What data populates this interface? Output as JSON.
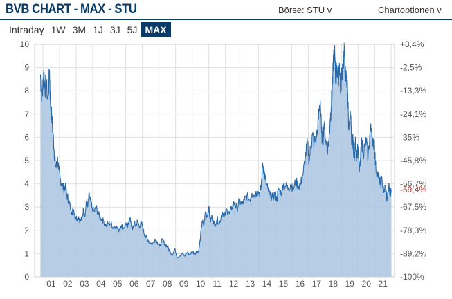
{
  "header": {
    "title": "BVB CHART - MAX - STU",
    "exchange_label": "Börse: STU v",
    "options_label": "Chartoptionen v"
  },
  "range_tabs": [
    {
      "label": "Intraday",
      "active": false
    },
    {
      "label": "1W",
      "active": false
    },
    {
      "label": "3M",
      "active": false
    },
    {
      "label": "1J",
      "active": false
    },
    {
      "label": "3J",
      "active": false
    },
    {
      "label": "5J",
      "active": false
    },
    {
      "label": "MAX",
      "active": true
    }
  ],
  "colors": {
    "brand": "#0a3a66",
    "line": "#2a6aa8",
    "area": "#a9c4e0",
    "highlight_pct": "#c0392b"
  },
  "chart_data": {
    "type": "area",
    "title": "",
    "xlabel": "",
    "ylabel": "",
    "ylim": [
      0,
      10
    ],
    "xlim": [
      2000.5,
      2022.2
    ],
    "grid": true,
    "y_ticks": [
      "0",
      "1",
      "2",
      "3",
      "4",
      "5",
      "6",
      "7",
      "8",
      "9",
      "10"
    ],
    "y2_ticks": [
      "-100%",
      "-89,2%",
      "-78,3%",
      "-67,5%",
      "-56,7%",
      "-45,8%",
      "-35%",
      "-24,1%",
      "-13,3%",
      "-2,5%",
      "+8,4%"
    ],
    "current_pct": "-59,4%",
    "current_value": 3.75,
    "x_ticks": [
      "01",
      "02",
      "03",
      "04",
      "05",
      "06",
      "07",
      "08",
      "09",
      "10",
      "11",
      "12",
      "13",
      "14",
      "15",
      "16",
      "17",
      "18",
      "19",
      "20",
      "21"
    ],
    "series": [
      {
        "values": [
          [
            2000.85,
            8.7
          ],
          [
            2000.9,
            8.0
          ],
          [
            2000.97,
            7.8
          ],
          [
            2001.05,
            8.9
          ],
          [
            2001.12,
            8.1
          ],
          [
            2001.2,
            8.3
          ],
          [
            2001.3,
            7.6
          ],
          [
            2001.4,
            8.9
          ],
          [
            2001.45,
            7.5
          ],
          [
            2001.55,
            6.7
          ],
          [
            2001.62,
            6.1
          ],
          [
            2001.68,
            5.4
          ],
          [
            2001.72,
            5.0
          ],
          [
            2001.8,
            4.7
          ],
          [
            2001.88,
            5.1
          ],
          [
            2001.95,
            4.6
          ],
          [
            2002.05,
            4.2
          ],
          [
            2002.15,
            4.0
          ],
          [
            2002.25,
            3.8
          ],
          [
            2002.35,
            3.9
          ],
          [
            2002.45,
            3.5
          ],
          [
            2002.55,
            3.3
          ],
          [
            2002.65,
            3.0
          ],
          [
            2002.75,
            2.8
          ],
          [
            2002.85,
            2.9
          ],
          [
            2002.95,
            2.6
          ],
          [
            2003.05,
            2.5
          ],
          [
            2003.15,
            2.6
          ],
          [
            2003.25,
            2.4
          ],
          [
            2003.35,
            2.5
          ],
          [
            2003.45,
            2.9
          ],
          [
            2003.55,
            2.7
          ],
          [
            2003.62,
            3.2
          ],
          [
            2003.7,
            3.0
          ],
          [
            2003.78,
            3.5
          ],
          [
            2003.85,
            3.3
          ],
          [
            2003.95,
            3.0
          ],
          [
            2004.1,
            2.8
          ],
          [
            2004.2,
            3.0
          ],
          [
            2004.35,
            2.7
          ],
          [
            2004.5,
            2.5
          ],
          [
            2004.65,
            2.4
          ],
          [
            2004.8,
            2.2
          ],
          [
            2004.95,
            2.3
          ],
          [
            2005.1,
            2.3
          ],
          [
            2005.25,
            2.1
          ],
          [
            2005.4,
            2.2
          ],
          [
            2005.55,
            2.0
          ],
          [
            2005.7,
            2.2
          ],
          [
            2005.85,
            2.1
          ],
          [
            2006.0,
            2.3
          ],
          [
            2006.1,
            2.1
          ],
          [
            2006.2,
            2.5
          ],
          [
            2006.3,
            2.4
          ],
          [
            2006.4,
            2.0
          ],
          [
            2006.5,
            2.3
          ],
          [
            2006.6,
            2.2
          ],
          [
            2006.7,
            2.4
          ],
          [
            2006.8,
            2.2
          ],
          [
            2006.95,
            2.3
          ],
          [
            2007.05,
            2.0
          ],
          [
            2007.15,
            1.8
          ],
          [
            2007.3,
            1.6
          ],
          [
            2007.45,
            1.5
          ],
          [
            2007.6,
            1.4
          ],
          [
            2007.75,
            1.6
          ],
          [
            2007.9,
            1.5
          ],
          [
            2008.05,
            1.3
          ],
          [
            2008.2,
            1.6
          ],
          [
            2008.35,
            1.4
          ],
          [
            2008.5,
            1.3
          ],
          [
            2008.65,
            1.1
          ],
          [
            2008.8,
            0.95
          ],
          [
            2008.95,
            1.2
          ],
          [
            2009.1,
            0.85
          ],
          [
            2009.25,
            0.9
          ],
          [
            2009.4,
            1.0
          ],
          [
            2009.55,
            0.9
          ],
          [
            2009.7,
            1.05
          ],
          [
            2009.85,
            0.95
          ],
          [
            2010.0,
            1.1
          ],
          [
            2010.15,
            1.0
          ],
          [
            2010.3,
            1.1
          ],
          [
            2010.4,
            1.1
          ],
          [
            2010.5,
            1.7
          ],
          [
            2010.6,
            2.4
          ],
          [
            2010.7,
            2.2
          ],
          [
            2010.8,
            2.8
          ],
          [
            2010.9,
            2.6
          ],
          [
            2011.0,
            3.0
          ],
          [
            2011.1,
            2.4
          ],
          [
            2011.2,
            2.6
          ],
          [
            2011.35,
            2.2
          ],
          [
            2011.5,
            2.5
          ],
          [
            2011.65,
            2.3
          ],
          [
            2011.8,
            2.8
          ],
          [
            2011.95,
            2.6
          ],
          [
            2012.1,
            2.9
          ],
          [
            2012.25,
            2.7
          ],
          [
            2012.4,
            3.0
          ],
          [
            2012.55,
            3.2
          ],
          [
            2012.7,
            2.9
          ],
          [
            2012.85,
            3.3
          ],
          [
            2013.0,
            3.1
          ],
          [
            2013.15,
            3.3
          ],
          [
            2013.3,
            3.5
          ],
          [
            2013.45,
            3.3
          ],
          [
            2013.6,
            3.6
          ],
          [
            2013.75,
            3.5
          ],
          [
            2013.9,
            3.7
          ],
          [
            2014.05,
            3.6
          ],
          [
            2014.15,
            3.8
          ],
          [
            2014.25,
            4.9
          ],
          [
            2014.35,
            4.5
          ],
          [
            2014.45,
            4.0
          ],
          [
            2014.55,
            3.8
          ],
          [
            2014.7,
            3.5
          ],
          [
            2014.85,
            3.4
          ],
          [
            2015.0,
            3.6
          ],
          [
            2015.1,
            3.3
          ],
          [
            2015.2,
            3.8
          ],
          [
            2015.35,
            3.6
          ],
          [
            2015.5,
            4.0
          ],
          [
            2015.65,
            3.9
          ],
          [
            2015.8,
            3.8
          ],
          [
            2015.95,
            4.0
          ],
          [
            2016.1,
            3.8
          ],
          [
            2016.25,
            4.1
          ],
          [
            2016.4,
            3.9
          ],
          [
            2016.55,
            4.0
          ],
          [
            2016.7,
            4.5
          ],
          [
            2016.82,
            5.1
          ],
          [
            2016.95,
            5.8
          ],
          [
            2017.05,
            5.0
          ],
          [
            2017.15,
            5.6
          ],
          [
            2017.25,
            6.1
          ],
          [
            2017.35,
            5.8
          ],
          [
            2017.45,
            5.9
          ],
          [
            2017.55,
            6.3
          ],
          [
            2017.65,
            7.1
          ],
          [
            2017.72,
            7.6
          ],
          [
            2017.8,
            6.2
          ],
          [
            2017.88,
            5.8
          ],
          [
            2017.95,
            6.6
          ],
          [
            2018.05,
            5.9
          ],
          [
            2018.15,
            5.5
          ],
          [
            2018.25,
            5.9
          ],
          [
            2018.32,
            6.8
          ],
          [
            2018.38,
            7.3
          ],
          [
            2018.45,
            8.2
          ],
          [
            2018.52,
            9.2
          ],
          [
            2018.58,
            9.8
          ],
          [
            2018.65,
            8.3
          ],
          [
            2018.72,
            9.1
          ],
          [
            2018.8,
            8.5
          ],
          [
            2018.88,
            9.2
          ],
          [
            2018.95,
            8.0
          ],
          [
            2019.02,
            8.8
          ],
          [
            2019.1,
            9.3
          ],
          [
            2019.18,
            9.6
          ],
          [
            2019.25,
            8.4
          ],
          [
            2019.3,
            8.7
          ],
          [
            2019.38,
            7.8
          ],
          [
            2019.45,
            6.3
          ],
          [
            2019.55,
            6.9
          ],
          [
            2019.62,
            5.7
          ],
          [
            2019.7,
            5.9
          ],
          [
            2019.78,
            5.0
          ],
          [
            2019.85,
            5.9
          ],
          [
            2019.92,
            5.2
          ],
          [
            2020.0,
            5.6
          ],
          [
            2020.08,
            4.5
          ],
          [
            2020.15,
            5.1
          ],
          [
            2020.22,
            5.9
          ],
          [
            2020.3,
            5.3
          ],
          [
            2020.4,
            5.6
          ],
          [
            2020.5,
            5.9
          ],
          [
            2020.6,
            5.1
          ],
          [
            2020.72,
            6.2
          ],
          [
            2020.82,
            6.4
          ],
          [
            2020.9,
            5.6
          ],
          [
            2020.98,
            5.9
          ],
          [
            2021.05,
            4.8
          ],
          [
            2021.15,
            4.5
          ],
          [
            2021.25,
            4.2
          ],
          [
            2021.35,
            4.0
          ],
          [
            2021.45,
            4.2
          ],
          [
            2021.55,
            3.6
          ],
          [
            2021.65,
            3.9
          ],
          [
            2021.75,
            3.3
          ],
          [
            2021.85,
            3.9
          ],
          [
            2021.93,
            3.5
          ],
          [
            2022.0,
            3.75
          ]
        ]
      }
    ]
  }
}
